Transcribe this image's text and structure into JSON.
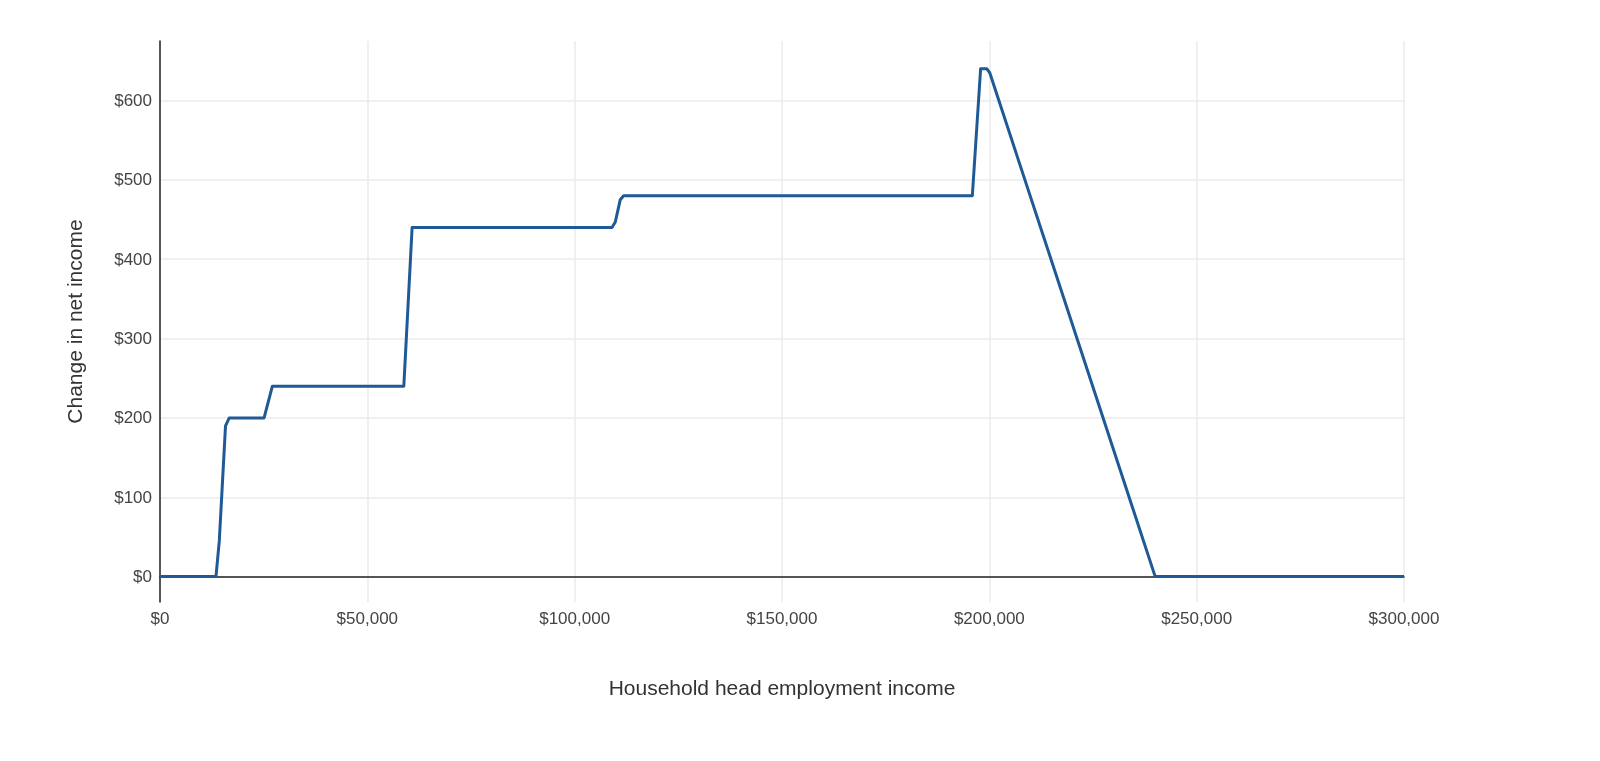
{
  "chart_data": {
    "type": "line",
    "xlabel": "Household head employment income",
    "ylabel": "Change in net income",
    "series": [
      {
        "color": "#1f5a96",
        "x": [
          0,
          13500,
          14300,
          15800,
          16700,
          25100,
          27100,
          58800,
          60800,
          109000,
          109800,
          111000,
          111800,
          195900,
          197900,
          199400,
          200100,
          240000,
          300000
        ],
        "values": [
          0,
          0,
          45,
          190,
          200,
          200,
          240,
          240,
          440,
          440,
          447,
          475,
          480,
          480,
          640,
          640,
          635,
          0,
          0
        ]
      }
    ],
    "xlim": [
      0,
      300000
    ],
    "ylim": [
      -32,
      675
    ],
    "xticks": [
      {
        "value": 0,
        "label": "$0"
      },
      {
        "value": 50000,
        "label": "$50,000"
      },
      {
        "value": 100000,
        "label": "$100,000"
      },
      {
        "value": 150000,
        "label": "$150,000"
      },
      {
        "value": 200000,
        "label": "$200,000"
      },
      {
        "value": 250000,
        "label": "$250,000"
      },
      {
        "value": 300000,
        "label": "$300,000"
      }
    ],
    "yticks": [
      {
        "value": 0,
        "label": "$0"
      },
      {
        "value": 100,
        "label": "$100"
      },
      {
        "value": 200,
        "label": "$200"
      },
      {
        "value": 300,
        "label": "$300"
      },
      {
        "value": 400,
        "label": "$400"
      },
      {
        "value": 500,
        "label": "$500"
      },
      {
        "value": 600,
        "label": "$600"
      }
    ],
    "grid": true,
    "marker": "none",
    "line_style": "solid"
  }
}
